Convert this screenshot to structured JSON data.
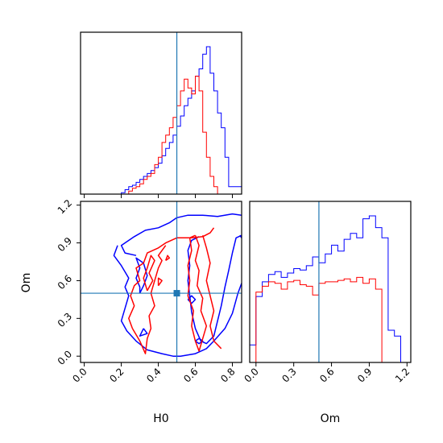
{
  "chart_data": {
    "type": "corner",
    "parameters": [
      "H0",
      "Om"
    ],
    "truths": {
      "H0": 0.5,
      "Om": 0.5
    },
    "colors": {
      "blue": "#0000ff",
      "red": "#ff0000",
      "truth": "#1f77b4"
    },
    "axes": {
      "H0": {
        "label": "H0",
        "range": [
          -0.02,
          0.85
        ],
        "ticks": [
          0.0,
          0.2,
          0.4,
          0.6,
          0.8
        ],
        "tick_labels": [
          "0.0",
          "0.2",
          "0.4",
          "0.6",
          "0.8"
        ]
      },
      "Om": {
        "label": "Om",
        "range": [
          -0.05,
          1.23
        ],
        "ticks": [
          0.0,
          0.3,
          0.6,
          0.9,
          1.2
        ],
        "tick_labels": [
          "0.0",
          "0.3",
          "0.6",
          "0.9",
          "1.2"
        ]
      }
    },
    "panels": [
      {
        "id": "hist-H0",
        "type": "step-histogram",
        "param": "H0",
        "series": [
          {
            "color": "blue",
            "edges": [
              0.0,
              0.2,
              0.22,
              0.24,
              0.26,
              0.28,
              0.3,
              0.32,
              0.34,
              0.36,
              0.38,
              0.4,
              0.42,
              0.44,
              0.46,
              0.48,
              0.5,
              0.52,
              0.54,
              0.56,
              0.58,
              0.6,
              0.62,
              0.64,
              0.66,
              0.68,
              0.7,
              0.72,
              0.74,
              0.76,
              0.78,
              0.85
            ],
            "counts": [
              0.0,
              0.01,
              0.03,
              0.05,
              0.06,
              0.08,
              0.1,
              0.12,
              0.14,
              0.16,
              0.18,
              0.21,
              0.26,
              0.31,
              0.35,
              0.4,
              0.46,
              0.53,
              0.6,
              0.65,
              0.7,
              0.8,
              0.85,
              0.95,
              1.0,
              0.82,
              0.7,
              0.55,
              0.45,
              0.25,
              0.05
            ]
          },
          {
            "color": "red",
            "edges": [
              0.0,
              0.24,
              0.26,
              0.28,
              0.3,
              0.32,
              0.34,
              0.36,
              0.38,
              0.4,
              0.42,
              0.44,
              0.46,
              0.48,
              0.5,
              0.52,
              0.54,
              0.56,
              0.58,
              0.6,
              0.62,
              0.64,
              0.66,
              0.68,
              0.7,
              0.72,
              0.85
            ],
            "counts": [
              0.0,
              0.02,
              0.04,
              0.05,
              0.07,
              0.1,
              0.12,
              0.14,
              0.2,
              0.25,
              0.35,
              0.4,
              0.45,
              0.52,
              0.6,
              0.7,
              0.78,
              0.72,
              0.68,
              0.8,
              0.7,
              0.42,
              0.25,
              0.12,
              0.05,
              0.0
            ]
          }
        ]
      },
      {
        "id": "hist-Om",
        "type": "step-histogram",
        "param": "Om",
        "series": [
          {
            "color": "blue",
            "edges": [
              -0.05,
              0.0,
              0.05,
              0.1,
              0.15,
              0.2,
              0.25,
              0.3,
              0.35,
              0.4,
              0.45,
              0.5,
              0.55,
              0.6,
              0.65,
              0.7,
              0.75,
              0.8,
              0.85,
              0.9,
              0.95,
              1.0,
              1.05,
              1.1,
              1.15,
              1.23
            ],
            "counts": [
              0.12,
              0.45,
              0.55,
              0.6,
              0.62,
              0.58,
              0.61,
              0.64,
              0.63,
              0.66,
              0.72,
              0.68,
              0.74,
              0.8,
              0.76,
              0.84,
              0.88,
              0.85,
              0.98,
              1.0,
              0.92,
              0.85,
              0.22,
              0.18,
              0.0
            ]
          },
          {
            "color": "red",
            "edges": [
              0.0,
              0.05,
              0.1,
              0.15,
              0.2,
              0.25,
              0.3,
              0.35,
              0.4,
              0.45,
              0.5,
              0.55,
              0.6,
              0.65,
              0.7,
              0.75,
              0.8,
              0.85,
              0.9,
              0.95,
              1.0
            ],
            "counts": [
              0.48,
              0.52,
              0.55,
              0.54,
              0.5,
              0.55,
              0.56,
              0.53,
              0.52,
              0.46,
              0.54,
              0.55,
              0.55,
              0.56,
              0.57,
              0.55,
              0.58,
              0.54,
              0.57,
              0.5
            ]
          }
        ]
      },
      {
        "id": "contour-H0-Om",
        "type": "2d-contours",
        "x": "H0",
        "y": "Om",
        "series": [
          {
            "color": "blue",
            "paths": [
              [
                [
                  0.28,
                  0.8
                ],
                [
                  0.22,
                  0.82
                ],
                [
                  0.2,
                  0.88
                ],
                [
                  0.27,
                  0.95
                ],
                [
                  0.33,
                  1.0
                ],
                [
                  0.4,
                  1.02
                ],
                [
                  0.46,
                  1.06
                ],
                [
                  0.5,
                  1.1
                ],
                [
                  0.56,
                  1.12
                ],
                [
                  0.64,
                  1.12
                ],
                [
                  0.72,
                  1.11
                ],
                [
                  0.8,
                  1.13
                ],
                [
                  0.85,
                  1.12
                ]
              ],
              [
                [
                  0.18,
                  0.88
                ],
                [
                  0.16,
                  0.8
                ],
                [
                  0.2,
                  0.72
                ],
                [
                  0.24,
                  0.62
                ],
                [
                  0.22,
                  0.55
                ],
                [
                  0.24,
                  0.48
                ],
                [
                  0.22,
                  0.38
                ],
                [
                  0.2,
                  0.28
                ],
                [
                  0.23,
                  0.2
                ],
                [
                  0.28,
                  0.12
                ],
                [
                  0.34,
                  0.05
                ],
                [
                  0.42,
                  0.02
                ],
                [
                  0.48,
                  0.0
                ],
                [
                  0.52,
                  0.0
                ],
                [
                  0.6,
                  0.02
                ],
                [
                  0.66,
                  0.06
                ],
                [
                  0.7,
                  0.12
                ],
                [
                  0.76,
                  0.22
                ],
                [
                  0.8,
                  0.34
                ],
                [
                  0.83,
                  0.5
                ],
                [
                  0.85,
                  0.58
                ]
              ],
              [
                [
                  0.62,
                  0.95
                ],
                [
                  0.58,
                  0.92
                ],
                [
                  0.56,
                  0.84
                ],
                [
                  0.57,
                  0.72
                ],
                [
                  0.56,
                  0.6
                ],
                [
                  0.57,
                  0.48
                ],
                [
                  0.58,
                  0.35
                ],
                [
                  0.6,
                  0.22
                ],
                [
                  0.63,
                  0.12
                ],
                [
                  0.66,
                  0.1
                ],
                [
                  0.7,
                  0.16
                ],
                [
                  0.72,
                  0.28
                ],
                [
                  0.74,
                  0.4
                ],
                [
                  0.76,
                  0.55
                ],
                [
                  0.78,
                  0.68
                ],
                [
                  0.8,
                  0.82
                ],
                [
                  0.82,
                  0.94
                ],
                [
                  0.85,
                  0.96
                ]
              ],
              [
                [
                  0.84,
                  0.96
                ],
                [
                  0.85,
                  0.94
                ]
              ],
              [
                [
                  0.3,
                  0.5
                ],
                [
                  0.32,
                  0.56
                ],
                [
                  0.34,
                  0.64
                ],
                [
                  0.32,
                  0.74
                ],
                [
                  0.28,
                  0.78
                ],
                [
                  0.3,
                  0.7
                ],
                [
                  0.28,
                  0.62
                ],
                [
                  0.3,
                  0.55
                ],
                [
                  0.3,
                  0.5
                ]
              ],
              [
                [
                  0.32,
                  0.22
                ],
                [
                  0.34,
                  0.18
                ],
                [
                  0.3,
                  0.16
                ],
                [
                  0.32,
                  0.22
                ]
              ],
              [
                [
                  0.56,
                  0.45
                ],
                [
                  0.58,
                  0.42
                ],
                [
                  0.6,
                  0.45
                ],
                [
                  0.58,
                  0.48
                ],
                [
                  0.56,
                  0.45
                ]
              ],
              [
                [
                  0.6,
                  0.12
                ],
                [
                  0.62,
                  0.1
                ],
                [
                  0.64,
                  0.12
                ],
                [
                  0.62,
                  0.14
                ],
                [
                  0.6,
                  0.12
                ]
              ]
            ]
          },
          {
            "color": "red",
            "paths": [
              [
                [
                  0.26,
                  0.22
                ],
                [
                  0.24,
                  0.3
                ],
                [
                  0.27,
                  0.4
                ],
                [
                  0.25,
                  0.48
                ],
                [
                  0.27,
                  0.56
                ],
                [
                  0.3,
                  0.6
                ],
                [
                  0.28,
                  0.7
                ],
                [
                  0.32,
                  0.74
                ],
                [
                  0.34,
                  0.82
                ],
                [
                  0.4,
                  0.86
                ],
                [
                  0.44,
                  0.9
                ],
                [
                  0.5,
                  0.94
                ],
                [
                  0.58,
                  0.94
                ],
                [
                  0.64,
                  0.95
                ],
                [
                  0.68,
                  0.98
                ],
                [
                  0.7,
                  1.02
                ]
              ],
              [
                [
                  0.26,
                  0.22
                ],
                [
                  0.3,
                  0.12
                ],
                [
                  0.33,
                  0.02
                ],
                [
                  0.34,
                  0.14
                ],
                [
                  0.36,
                  0.22
                ],
                [
                  0.35,
                  0.32
                ],
                [
                  0.38,
                  0.4
                ],
                [
                  0.36,
                  0.5
                ],
                [
                  0.38,
                  0.6
                ],
                [
                  0.4,
                  0.7
                ],
                [
                  0.42,
                  0.76
                ],
                [
                  0.4,
                  0.8
                ],
                [
                  0.44,
                  0.88
                ]
              ],
              [
                [
                  0.34,
                  0.52
                ],
                [
                  0.37,
                  0.6
                ],
                [
                  0.35,
                  0.66
                ],
                [
                  0.38,
                  0.76
                ],
                [
                  0.36,
                  0.8
                ],
                [
                  0.34,
                  0.7
                ],
                [
                  0.32,
                  0.62
                ],
                [
                  0.34,
                  0.52
                ]
              ],
              [
                [
                  0.4,
                  0.56
                ],
                [
                  0.42,
                  0.6
                ],
                [
                  0.4,
                  0.62
                ],
                [
                  0.4,
                  0.56
                ]
              ],
              [
                [
                  0.44,
                  0.76
                ],
                [
                  0.46,
                  0.78
                ],
                [
                  0.45,
                  0.8
                ],
                [
                  0.44,
                  0.76
                ]
              ],
              [
                [
                  0.6,
                  0.96
                ],
                [
                  0.62,
                  0.88
                ],
                [
                  0.6,
                  0.76
                ],
                [
                  0.62,
                  0.68
                ],
                [
                  0.61,
                  0.56
                ],
                [
                  0.64,
                  0.46
                ],
                [
                  0.63,
                  0.36
                ],
                [
                  0.66,
                  0.24
                ],
                [
                  0.64,
                  0.14
                ],
                [
                  0.62,
                  0.04
                ],
                [
                  0.6,
                  0.12
                ],
                [
                  0.58,
                  0.24
                ],
                [
                  0.59,
                  0.36
                ],
                [
                  0.56,
                  0.48
                ],
                [
                  0.57,
                  0.6
                ],
                [
                  0.56,
                  0.72
                ],
                [
                  0.58,
                  0.84
                ],
                [
                  0.57,
                  0.94
                ],
                [
                  0.6,
                  0.96
                ]
              ],
              [
                [
                  0.64,
                  0.96
                ],
                [
                  0.66,
                  0.86
                ],
                [
                  0.68,
                  0.74
                ],
                [
                  0.66,
                  0.6
                ],
                [
                  0.68,
                  0.48
                ],
                [
                  0.7,
                  0.36
                ],
                [
                  0.68,
                  0.24
                ],
                [
                  0.7,
                  0.12
                ],
                [
                  0.74,
                  0.06
                ]
              ]
            ]
          }
        ]
      }
    ]
  }
}
